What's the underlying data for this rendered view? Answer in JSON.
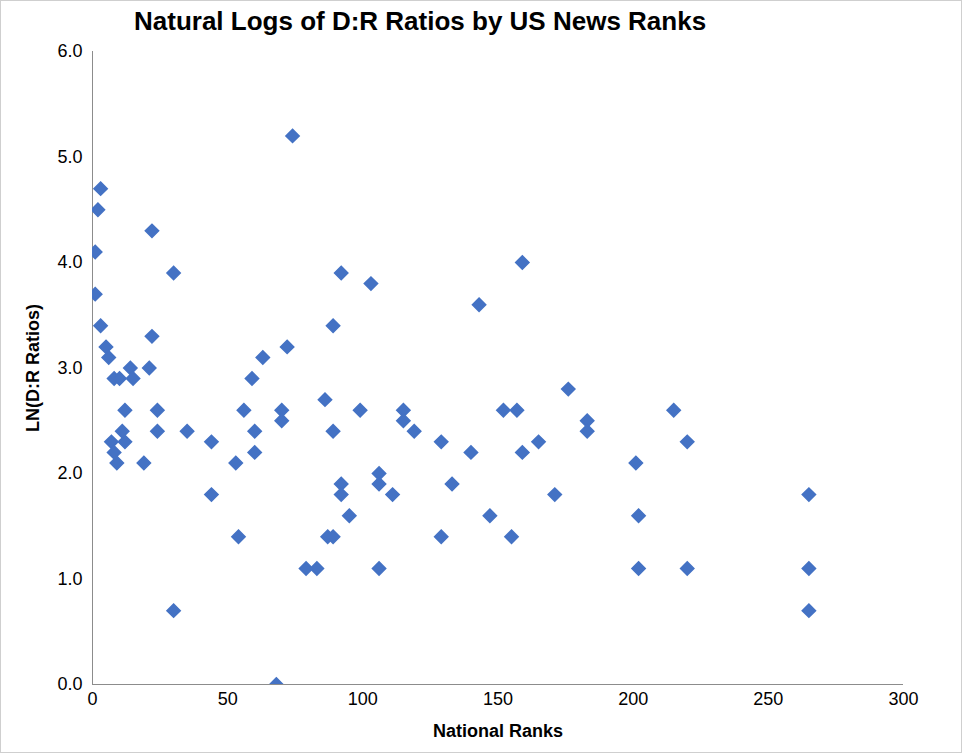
{
  "chart_data": {
    "type": "scatter",
    "title": "Natural Logs of D:R Ratios by US News Ranks",
    "x_label": "National Ranks",
    "y_label": "LN(D:R Ratios)",
    "x": [
      1,
      1,
      2,
      3,
      3,
      5,
      6,
      7,
      8,
      8,
      9,
      10,
      11,
      12,
      12,
      14,
      15,
      19,
      21,
      22,
      22,
      24,
      24,
      30,
      30,
      35,
      44,
      44,
      53,
      54,
      56,
      59,
      60,
      60,
      63,
      68,
      70,
      70,
      72,
      74,
      79,
      83,
      86,
      87,
      89,
      89,
      89,
      92,
      92,
      92,
      95,
      99,
      103,
      106,
      106,
      106,
      111,
      115,
      115,
      119,
      129,
      129,
      133,
      140,
      143,
      147,
      152,
      155,
      157,
      159,
      159,
      165,
      171,
      176,
      183,
      183,
      201,
      202,
      202,
      215,
      220,
      220,
      265,
      265,
      265
    ],
    "values": [
      4.1,
      3.7,
      4.5,
      4.7,
      3.4,
      3.2,
      3.1,
      2.3,
      2.9,
      2.2,
      2.1,
      2.9,
      2.4,
      2.6,
      2.3,
      3.0,
      2.9,
      2.1,
      3.0,
      4.3,
      3.3,
      2.6,
      2.4,
      3.9,
      0.7,
      2.4,
      2.3,
      1.8,
      2.1,
      1.4,
      2.6,
      2.9,
      2.4,
      2.2,
      3.1,
      0.0,
      2.6,
      2.5,
      3.2,
      5.2,
      1.1,
      1.1,
      2.7,
      1.4,
      3.4,
      2.4,
      1.4,
      3.9,
      1.9,
      1.8,
      1.6,
      2.6,
      3.8,
      2.0,
      1.9,
      1.1,
      1.8,
      2.6,
      2.5,
      2.4,
      2.3,
      1.4,
      1.9,
      2.2,
      3.6,
      1.6,
      2.6,
      1.4,
      2.6,
      4.0,
      2.2,
      2.3,
      1.8,
      2.8,
      2.5,
      2.4,
      2.1,
      1.6,
      1.1,
      2.6,
      2.3,
      1.1,
      1.8,
      1.1,
      0.7
    ],
    "color": "#4472c4",
    "marker": "diamond",
    "xlim": [
      0,
      300
    ],
    "xticks": [
      0,
      50,
      100,
      150,
      200,
      250,
      300
    ],
    "ylim": [
      0,
      6
    ],
    "yticks": [
      0,
      1,
      2,
      3,
      4,
      5,
      6
    ],
    "grid": false
  }
}
